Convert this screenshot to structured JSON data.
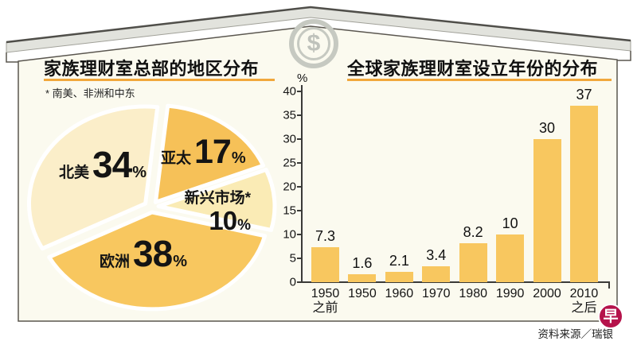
{
  "chart_data": [
    {
      "type": "pie",
      "title": "家族理财室总部的地区分布",
      "footnote": "* 南美、非洲和中东",
      "unit": "%",
      "legend_position": "inside",
      "slices": [
        {
          "label": "亚太",
          "value": 17,
          "color": "#F6C158"
        },
        {
          "label": "新兴市场*",
          "value": 10,
          "color": "#FAEBB5"
        },
        {
          "label": "欧洲",
          "value": 38,
          "color": "#F8C75F"
        },
        {
          "label": "北美",
          "value": 34,
          "color": "#FBEEC9"
        }
      ]
    },
    {
      "type": "bar",
      "title": "全球家族理财室设立年份的分布",
      "ylabel": "%",
      "ylim": [
        0,
        40
      ],
      "yticks": [
        0,
        5,
        10,
        15,
        20,
        25,
        30,
        35,
        40
      ],
      "grid": false,
      "categories": [
        [
          "1950",
          "之前"
        ],
        [
          "1950"
        ],
        [
          "1960"
        ],
        [
          "1970"
        ],
        [
          "1980"
        ],
        [
          "1990"
        ],
        [
          "2000"
        ],
        [
          "2010",
          "之后"
        ]
      ],
      "values": [
        7.3,
        1.6,
        2.1,
        3.4,
        8.2,
        10,
        30,
        37
      ],
      "bar_color": "#F8C75F"
    }
  ],
  "decorations": {
    "dollar_symbol": "$",
    "underline_color": "#F1A73C",
    "house_fill": "#FBFAEF",
    "roof_fill": "#E2E3DD"
  },
  "footer": {
    "source": "资料来源／瑞银",
    "logo_char": "早",
    "logo_color": "#B5134B"
  }
}
